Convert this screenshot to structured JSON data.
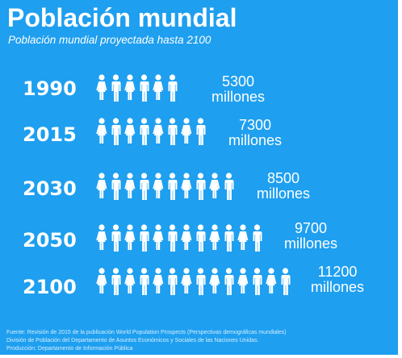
{
  "header": {
    "title": "Población mundial",
    "subtitle": "Población mundial proyectada hasta 2100"
  },
  "rows": [
    {
      "year": "1990",
      "value": "5300",
      "unit": "millones"
    },
    {
      "year": "2015",
      "value": "7300",
      "unit": "millones"
    },
    {
      "year": "2030",
      "value": "8500",
      "unit": "millones"
    },
    {
      "year": "2050",
      "value": "9700",
      "unit": "millones"
    },
    {
      "year": "2100",
      "value": "11200",
      "unit": "millones"
    }
  ],
  "footer": {
    "line1": "Fuente: Revisión de 2015 de la publicación World Population Prospects (Perspectivas demográficas mundiales)",
    "line2": "División de Población del Departamento de Asuntos Económicos y Sociales de las Naciones Unidas.",
    "line3": "Producción: Departamento de Información Pública"
  },
  "chart_data": {
    "type": "bar",
    "title": "Población mundial",
    "subtitle": "Población mundial proyectada hasta 2100",
    "categories": [
      "1990",
      "2015",
      "2030",
      "2050",
      "2100"
    ],
    "values": [
      5300,
      7300,
      8500,
      9700,
      11200
    ],
    "unit": "millones",
    "pictogram_counts": [
      6,
      8,
      10,
      12,
      14
    ],
    "ylabel": "",
    "xlabel": ""
  },
  "colors": {
    "background": "#1e9ff0",
    "text": "#ffffff"
  },
  "icons": {
    "person": "person-icon"
  }
}
